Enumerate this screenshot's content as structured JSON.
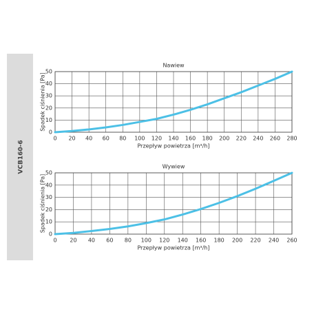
{
  "sidebar_label": "VCB160-6",
  "chart_data": [
    {
      "type": "line",
      "title": "Nawiew",
      "x_label": "Przepływ powietrza [m³/h]",
      "y_label": "Spadek ciśnienia [Pa]",
      "x": [
        0,
        20,
        40,
        60,
        80,
        100,
        120,
        140,
        160,
        180,
        200,
        220,
        240,
        260,
        280
      ],
      "series": [
        {
          "color": "#4cc0e6",
          "values": [
            0,
            1,
            2.3,
            4,
            6,
            8.5,
            11,
            14.5,
            18.5,
            23,
            28,
            33,
            38.5,
            44,
            50
          ]
        }
      ],
      "xlim": [
        0,
        280
      ],
      "xticks": [
        0,
        20,
        40,
        60,
        80,
        100,
        120,
        140,
        160,
        180,
        200,
        220,
        240,
        260,
        280
      ],
      "ylim": [
        0,
        50
      ],
      "yticks": [
        0,
        10,
        20,
        30,
        40,
        50
      ],
      "grid": true
    },
    {
      "type": "line",
      "title": "Wywiew",
      "x_label": "Przepływ powietrza [m³/h]",
      "y_label": "Spadek ciśnienia [Pa]",
      "x": [
        0,
        20,
        40,
        60,
        80,
        100,
        120,
        140,
        160,
        180,
        200,
        220,
        240,
        260
      ],
      "series": [
        {
          "color": "#4cc0e6",
          "values": [
            0,
            1,
            2.5,
            4.2,
            6.3,
            9,
            12,
            16,
            20.5,
            25.5,
            31,
            37,
            43.5,
            50
          ]
        }
      ],
      "xlim": [
        0,
        260
      ],
      "xticks": [
        0,
        20,
        40,
        60,
        80,
        100,
        120,
        140,
        160,
        180,
        200,
        220,
        240,
        260
      ],
      "ylim": [
        0,
        50
      ],
      "yticks": [
        0,
        10,
        20,
        30,
        40,
        50
      ],
      "grid": true
    }
  ]
}
